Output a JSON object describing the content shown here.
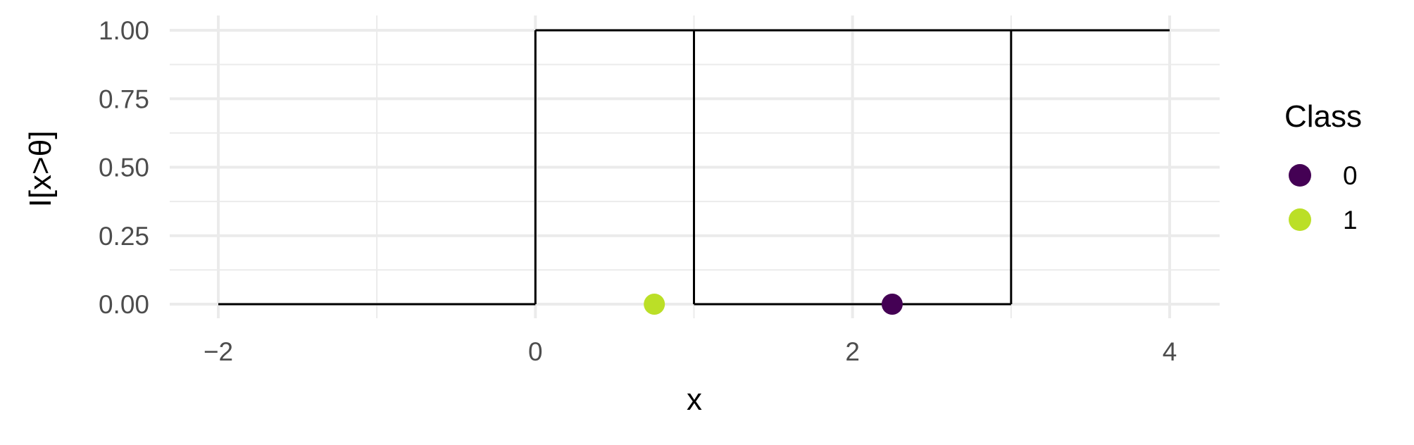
{
  "chart_data": {
    "type": "line",
    "xlabel": "x",
    "ylabel": "I[x>θ]",
    "xlim": [
      -2.15,
      4.15
    ],
    "ylim": [
      -0.05,
      1.05
    ],
    "x_ticks": [
      -2,
      0,
      2,
      4
    ],
    "x_tick_labels": [
      "−2",
      "0",
      "2",
      "4"
    ],
    "y_ticks": [
      0,
      0.25,
      0.5,
      0.75,
      1
    ],
    "y_tick_labels": [
      "0.00",
      "0.25",
      "0.50",
      "0.75",
      "1.00"
    ],
    "grid": true,
    "legend_position": "right",
    "series": [
      {
        "x": [
          -2,
          0,
          0,
          1,
          1,
          1,
          3,
          3,
          4
        ],
        "y": [
          0,
          0,
          1,
          1,
          0,
          1,
          1,
          0,
          0
        ],
        "color": "#000000"
      }
    ],
    "path_segments": [
      {
        "x": [
          -2,
          0
        ],
        "y": [
          0,
          0
        ]
      },
      {
        "x": [
          0,
          0
        ],
        "y": [
          0,
          1
        ]
      },
      {
        "x": [
          0,
          4
        ],
        "y": [
          1,
          1
        ]
      },
      {
        "x": [
          1,
          1
        ],
        "y": [
          0,
          1
        ]
      },
      {
        "x": [
          1,
          3
        ],
        "y": [
          0,
          0
        ]
      },
      {
        "x": [
          3,
          3
        ],
        "y": [
          0,
          1
        ]
      }
    ],
    "points": [
      {
        "x": 0.75,
        "y": 0,
        "class": "1"
      },
      {
        "x": 2.25,
        "y": 0,
        "class": "0"
      }
    ],
    "legend": {
      "title": "Class",
      "entries": [
        {
          "label": "0",
          "color": "#440154"
        },
        {
          "label": "1",
          "color": "#BBDF27"
        }
      ]
    }
  }
}
